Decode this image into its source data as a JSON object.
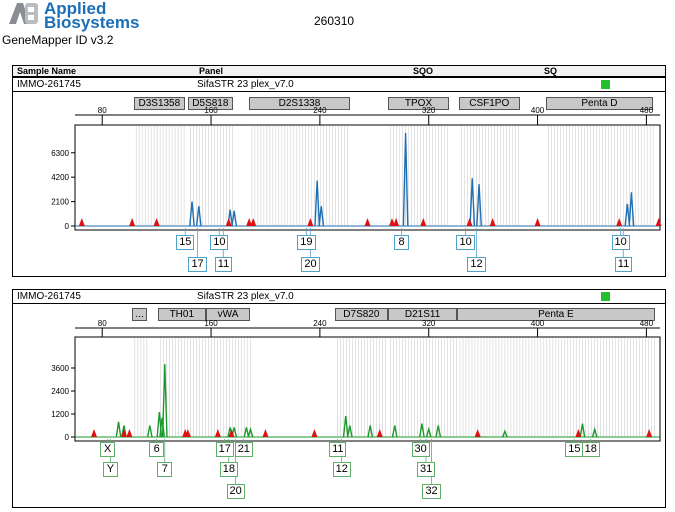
{
  "header": {
    "brand_line1": "Applied",
    "brand_line2": "Biosystems",
    "app_title": "GeneMapper ID v3.2",
    "run_id": "260310",
    "columns": {
      "sample_name": "Sample Name",
      "panel": "Panel",
      "sqo": "SQO",
      "sq": "SQ"
    }
  },
  "colors": {
    "blue_dye": "#1f6fb4",
    "green_dye": "#1a9a2a",
    "peak_marker": "#dd1111",
    "status_ok": "#22c02d",
    "locus_fill": "#c8c8c8"
  },
  "chart_data": [
    {
      "type": "line",
      "dye": "blue",
      "sample": "IMMO-261745",
      "panel": "SifaSTR 23 plex_v7.0",
      "xlim": [
        60,
        490
      ],
      "ylim": [
        0,
        8000
      ],
      "xticks": [
        80,
        160,
        240,
        320,
        400,
        480
      ],
      "yticks": [
        0,
        2100,
        4200,
        6300
      ],
      "loci": [
        {
          "name": "D3S1358",
          "start": 103,
          "end": 141
        },
        {
          "name": "D5S818",
          "start": 143,
          "end": 176
        },
        {
          "name": "D2S1338",
          "start": 188,
          "end": 262
        },
        {
          "name": "TPOX",
          "start": 290,
          "end": 335
        },
        {
          "name": "CSF1PO",
          "start": 342,
          "end": 387
        },
        {
          "name": "Penta D",
          "start": 406,
          "end": 485
        }
      ],
      "peaks": [
        {
          "x": 146,
          "height": 2100
        },
        {
          "x": 151,
          "height": 1700
        },
        {
          "x": 174,
          "height": 1400
        },
        {
          "x": 177,
          "height": 1300
        },
        {
          "x": 238,
          "height": 3900
        },
        {
          "x": 241,
          "height": 1700
        },
        {
          "x": 303,
          "height": 8000
        },
        {
          "x": 352,
          "height": 4100
        },
        {
          "x": 357,
          "height": 3600
        },
        {
          "x": 466,
          "height": 1900
        },
        {
          "x": 469,
          "height": 2900
        }
      ],
      "markers": [
        65,
        102,
        120,
        173,
        188,
        191,
        233,
        275,
        293,
        296,
        316,
        350,
        367,
        400,
        460,
        489
      ],
      "alleles": [
        {
          "x": 141,
          "row": 1,
          "label": "15"
        },
        {
          "x": 150,
          "row": 2,
          "label": "17"
        },
        {
          "x": 166,
          "row": 1,
          "label": "10"
        },
        {
          "x": 169,
          "row": 2,
          "label": "11"
        },
        {
          "x": 230,
          "row": 1,
          "label": "19"
        },
        {
          "x": 233,
          "row": 2,
          "label": "20"
        },
        {
          "x": 300,
          "row": 1,
          "label": "8"
        },
        {
          "x": 347,
          "row": 1,
          "label": "10"
        },
        {
          "x": 355,
          "row": 2,
          "label": "12"
        },
        {
          "x": 461,
          "row": 1,
          "label": "10"
        },
        {
          "x": 463,
          "row": 2,
          "label": "11"
        }
      ]
    },
    {
      "type": "line",
      "dye": "green",
      "sample": "IMMO-261745",
      "panel": "SifaSTR 23 plex_v7.0",
      "xlim": [
        60,
        490
      ],
      "ylim": [
        0,
        4800
      ],
      "xticks": [
        80,
        160,
        240,
        320,
        400,
        480
      ],
      "yticks": [
        0,
        1200,
        2400,
        3600
      ],
      "loci": [
        {
          "name": "...",
          "start": 102,
          "end": 113
        },
        {
          "name": "TH01",
          "start": 121,
          "end": 156
        },
        {
          "name": "vWA",
          "start": 156,
          "end": 189
        },
        {
          "name": "D7S820",
          "start": 251,
          "end": 290
        },
        {
          "name": "D21S11",
          "start": 290,
          "end": 341
        },
        {
          "name": "Penta E",
          "start": 341,
          "end": 486
        }
      ],
      "peaks": [
        {
          "x": 92,
          "height": 800
        },
        {
          "x": 96,
          "height": 600
        },
        {
          "x": 115,
          "height": 600
        },
        {
          "x": 122,
          "height": 1300
        },
        {
          "x": 124,
          "height": 1000
        },
        {
          "x": 126,
          "height": 3800
        },
        {
          "x": 174,
          "height": 500
        },
        {
          "x": 177,
          "height": 500
        },
        {
          "x": 186,
          "height": 500
        },
        {
          "x": 189,
          "height": 400
        },
        {
          "x": 259,
          "height": 1100
        },
        {
          "x": 262,
          "height": 600
        },
        {
          "x": 277,
          "height": 600
        },
        {
          "x": 295,
          "height": 600
        },
        {
          "x": 315,
          "height": 700
        },
        {
          "x": 320,
          "height": 400
        },
        {
          "x": 327,
          "height": 600
        },
        {
          "x": 376,
          "height": 300
        },
        {
          "x": 433,
          "height": 700
        },
        {
          "x": 442,
          "height": 400
        }
      ],
      "markers": [
        74,
        96,
        100,
        141,
        143,
        165,
        175,
        200,
        236,
        284,
        356,
        430,
        482
      ],
      "alleles": [
        {
          "x": 84,
          "row": 1,
          "label": "X"
        },
        {
          "x": 86,
          "row": 2,
          "label": "Y"
        },
        {
          "x": 120,
          "row": 1,
          "label": "6"
        },
        {
          "x": 126,
          "row": 2,
          "label": "7"
        },
        {
          "x": 170,
          "row": 1,
          "label": "17"
        },
        {
          "x": 173,
          "row": 2,
          "label": "18"
        },
        {
          "x": 178,
          "row": 3,
          "label": "20"
        },
        {
          "x": 184,
          "row": 1,
          "label": "21"
        },
        {
          "x": 253,
          "row": 1,
          "label": "11"
        },
        {
          "x": 256,
          "row": 2,
          "label": "12"
        },
        {
          "x": 314,
          "row": 1,
          "label": "30"
        },
        {
          "x": 318,
          "row": 2,
          "label": "31"
        },
        {
          "x": 322,
          "row": 3,
          "label": "32"
        },
        {
          "x": 427,
          "row": 1,
          "label": "15"
        },
        {
          "x": 439,
          "row": 1,
          "label": "18"
        }
      ]
    }
  ]
}
